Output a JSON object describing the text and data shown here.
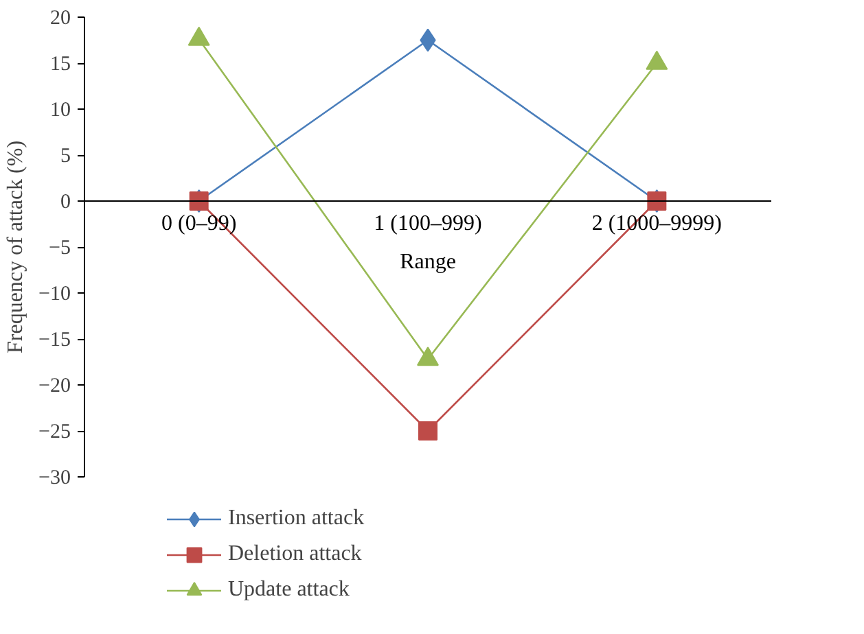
{
  "chart_data": {
    "type": "line",
    "xlabel": "Range",
    "ylabel": "Frequency of attack (%)",
    "categories": [
      "0 (0–99)",
      "1 (100–999)",
      "2 (1000–9999)"
    ],
    "series": [
      {
        "name": "Insertion attack",
        "color": "#4a7ebb",
        "marker": "diamond",
        "values": [
          0,
          17.5,
          0
        ]
      },
      {
        "name": "Deletion attack",
        "color": "#be4b48",
        "marker": "square",
        "values": [
          0,
          -25,
          0
        ]
      },
      {
        "name": "Update attack",
        "color": "#98b954",
        "marker": "triangle",
        "values": [
          17.6,
          -17.2,
          15
        ]
      }
    ],
    "ylim": [
      -30,
      20
    ],
    "yticks": [
      -30,
      -25,
      -20,
      -15,
      -10,
      -5,
      0,
      5,
      10,
      15,
      20
    ],
    "grid": false,
    "legend": "bottom left",
    "line_style": "solid"
  }
}
